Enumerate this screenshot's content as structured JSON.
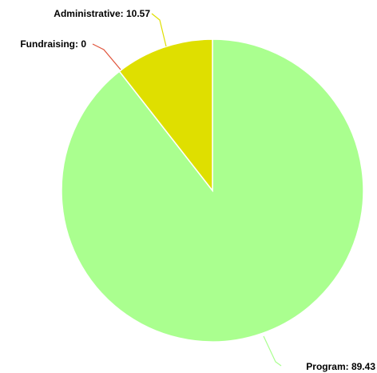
{
  "chart_data": {
    "type": "pie",
    "title": "",
    "legend": "none",
    "slices": [
      {
        "label": "Program",
        "value": 89.43,
        "color": "#aaff8f",
        "text": "Program: 89.43",
        "leader_color": "#aaff8f"
      },
      {
        "label": "Fundraising",
        "value": 0,
        "color": "#e0533a",
        "text": "Fundraising: 0",
        "leader_color": "#e0533a"
      },
      {
        "label": "Administrative",
        "value": 10.57,
        "color": "#dfdf00",
        "text": "Administrative: 10.57",
        "leader_color": "#dfdf00"
      }
    ],
    "start": "12 o'clock",
    "direction": "clockwise"
  }
}
